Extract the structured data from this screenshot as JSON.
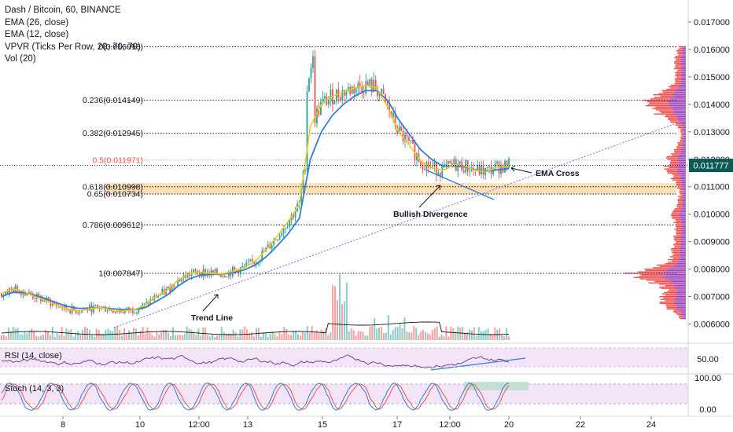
{
  "legend": {
    "title": "Dash / Bitcoin, 60, BINANCE",
    "ema26": "EMA (26, close)",
    "ema12": "EMA (12, close)",
    "vpvr": "VPVR (Ticks Per Row, 20, 70, 70)",
    "vol": "Vol (20)"
  },
  "panes": {
    "rsi_label": "RSI (14, close)",
    "stoch_label": "Stoch (14, 3, 3)"
  },
  "colors": {
    "ema26": "#2f7fd6",
    "ema12": "#f5c518",
    "up": "#26a69a",
    "down": "#ef5350",
    "fib_line": "#131722",
    "fib_half": "#f7a59a",
    "fib_zone": "#fbd9a8",
    "trend": "#7b68ee",
    "rsi_line": "#7b3f9e",
    "rsi_band": "#f3e5f7",
    "stoch_k": "#2f7fd6",
    "stoch_d": "#ef5350",
    "price_badge": "#0b5b53",
    "vpvr_red": "#ef2f2f",
    "vpvr_purple": "#8e24aa"
  },
  "annotations": {
    "trend_line": "Trend Line",
    "bullish_div": "Bullish Divergence",
    "ema_cross": "EMA Cross"
  },
  "current_price": "0.011777",
  "chart_data": {
    "type": "line",
    "ylim": [
      0.0053,
      0.0178
    ],
    "x_ticks": [
      "8",
      "10",
      "12:00",
      "13",
      "15",
      "17",
      "12:00",
      "20",
      "22",
      "24"
    ],
    "y_ticks": [
      "0.017000",
      "0.016000",
      "0.015000",
      "0.014000",
      "0.013000",
      "0.012000",
      "0.011000",
      "0.010000",
      "0.009000",
      "0.008000",
      "0.007000",
      "0.006000"
    ],
    "fib_levels": [
      {
        "label": "0(0.016096)",
        "value": 0.016096
      },
      {
        "label": "0.236(0.014149)",
        "value": 0.014149
      },
      {
        "label": "0.382(0.012945)",
        "value": 0.012945
      },
      {
        "label": "0.5(0.011971)",
        "value": 0.011971
      },
      {
        "label": "0.618(0.010998)",
        "value": 0.010998
      },
      {
        "label": "0.65(0.010734)",
        "value": 0.010734
      },
      {
        "label": "0.786(0.009612)",
        "value": 0.009612
      },
      {
        "label": "1(0.007847)",
        "value": 0.007847
      }
    ],
    "series": [
      {
        "name": "EMA (12, close)",
        "values": [
          0.00712,
          0.00728,
          0.00719,
          0.007,
          0.00685,
          0.00668,
          0.00654,
          0.00648,
          0.00656,
          0.0066,
          0.00652,
          0.00648,
          0.00652,
          0.00668,
          0.007,
          0.00722,
          0.0076,
          0.00782,
          0.0079,
          0.00784,
          0.00783,
          0.00792,
          0.00805,
          0.0083,
          0.0087,
          0.0092,
          0.00975,
          0.01035,
          0.0132,
          0.014,
          0.0143,
          0.01445,
          0.0146,
          0.0147,
          0.0146,
          0.0139,
          0.013,
          0.0125,
          0.01195,
          0.0117,
          0.0116,
          0.0118,
          0.01175,
          0.0116,
          0.01155,
          0.01172,
          0.01178
        ]
      },
      {
        "name": "EMA (26, close)",
        "values": [
          0.007,
          0.00715,
          0.00715,
          0.00705,
          0.00692,
          0.00677,
          0.00664,
          0.00657,
          0.00658,
          0.0066,
          0.00656,
          0.00652,
          0.00652,
          0.0066,
          0.00682,
          0.00705,
          0.00738,
          0.00764,
          0.00778,
          0.00781,
          0.00782,
          0.00787,
          0.00797,
          0.00815,
          0.00845,
          0.00885,
          0.0093,
          0.00985,
          0.012,
          0.013,
          0.0136,
          0.014,
          0.0143,
          0.0145,
          0.0145,
          0.01415,
          0.01345,
          0.0129,
          0.01235,
          0.012,
          0.01175,
          0.01175,
          0.01172,
          0.01162,
          0.01157,
          0.01162,
          0.01166
        ]
      }
    ],
    "rsi_ylim": [
      30,
      75
    ],
    "rsi_ticks": [
      "50.00"
    ],
    "stoch_ylim": [
      -10,
      110
    ],
    "stoch_ticks": [
      "100.00",
      "0.00"
    ]
  }
}
